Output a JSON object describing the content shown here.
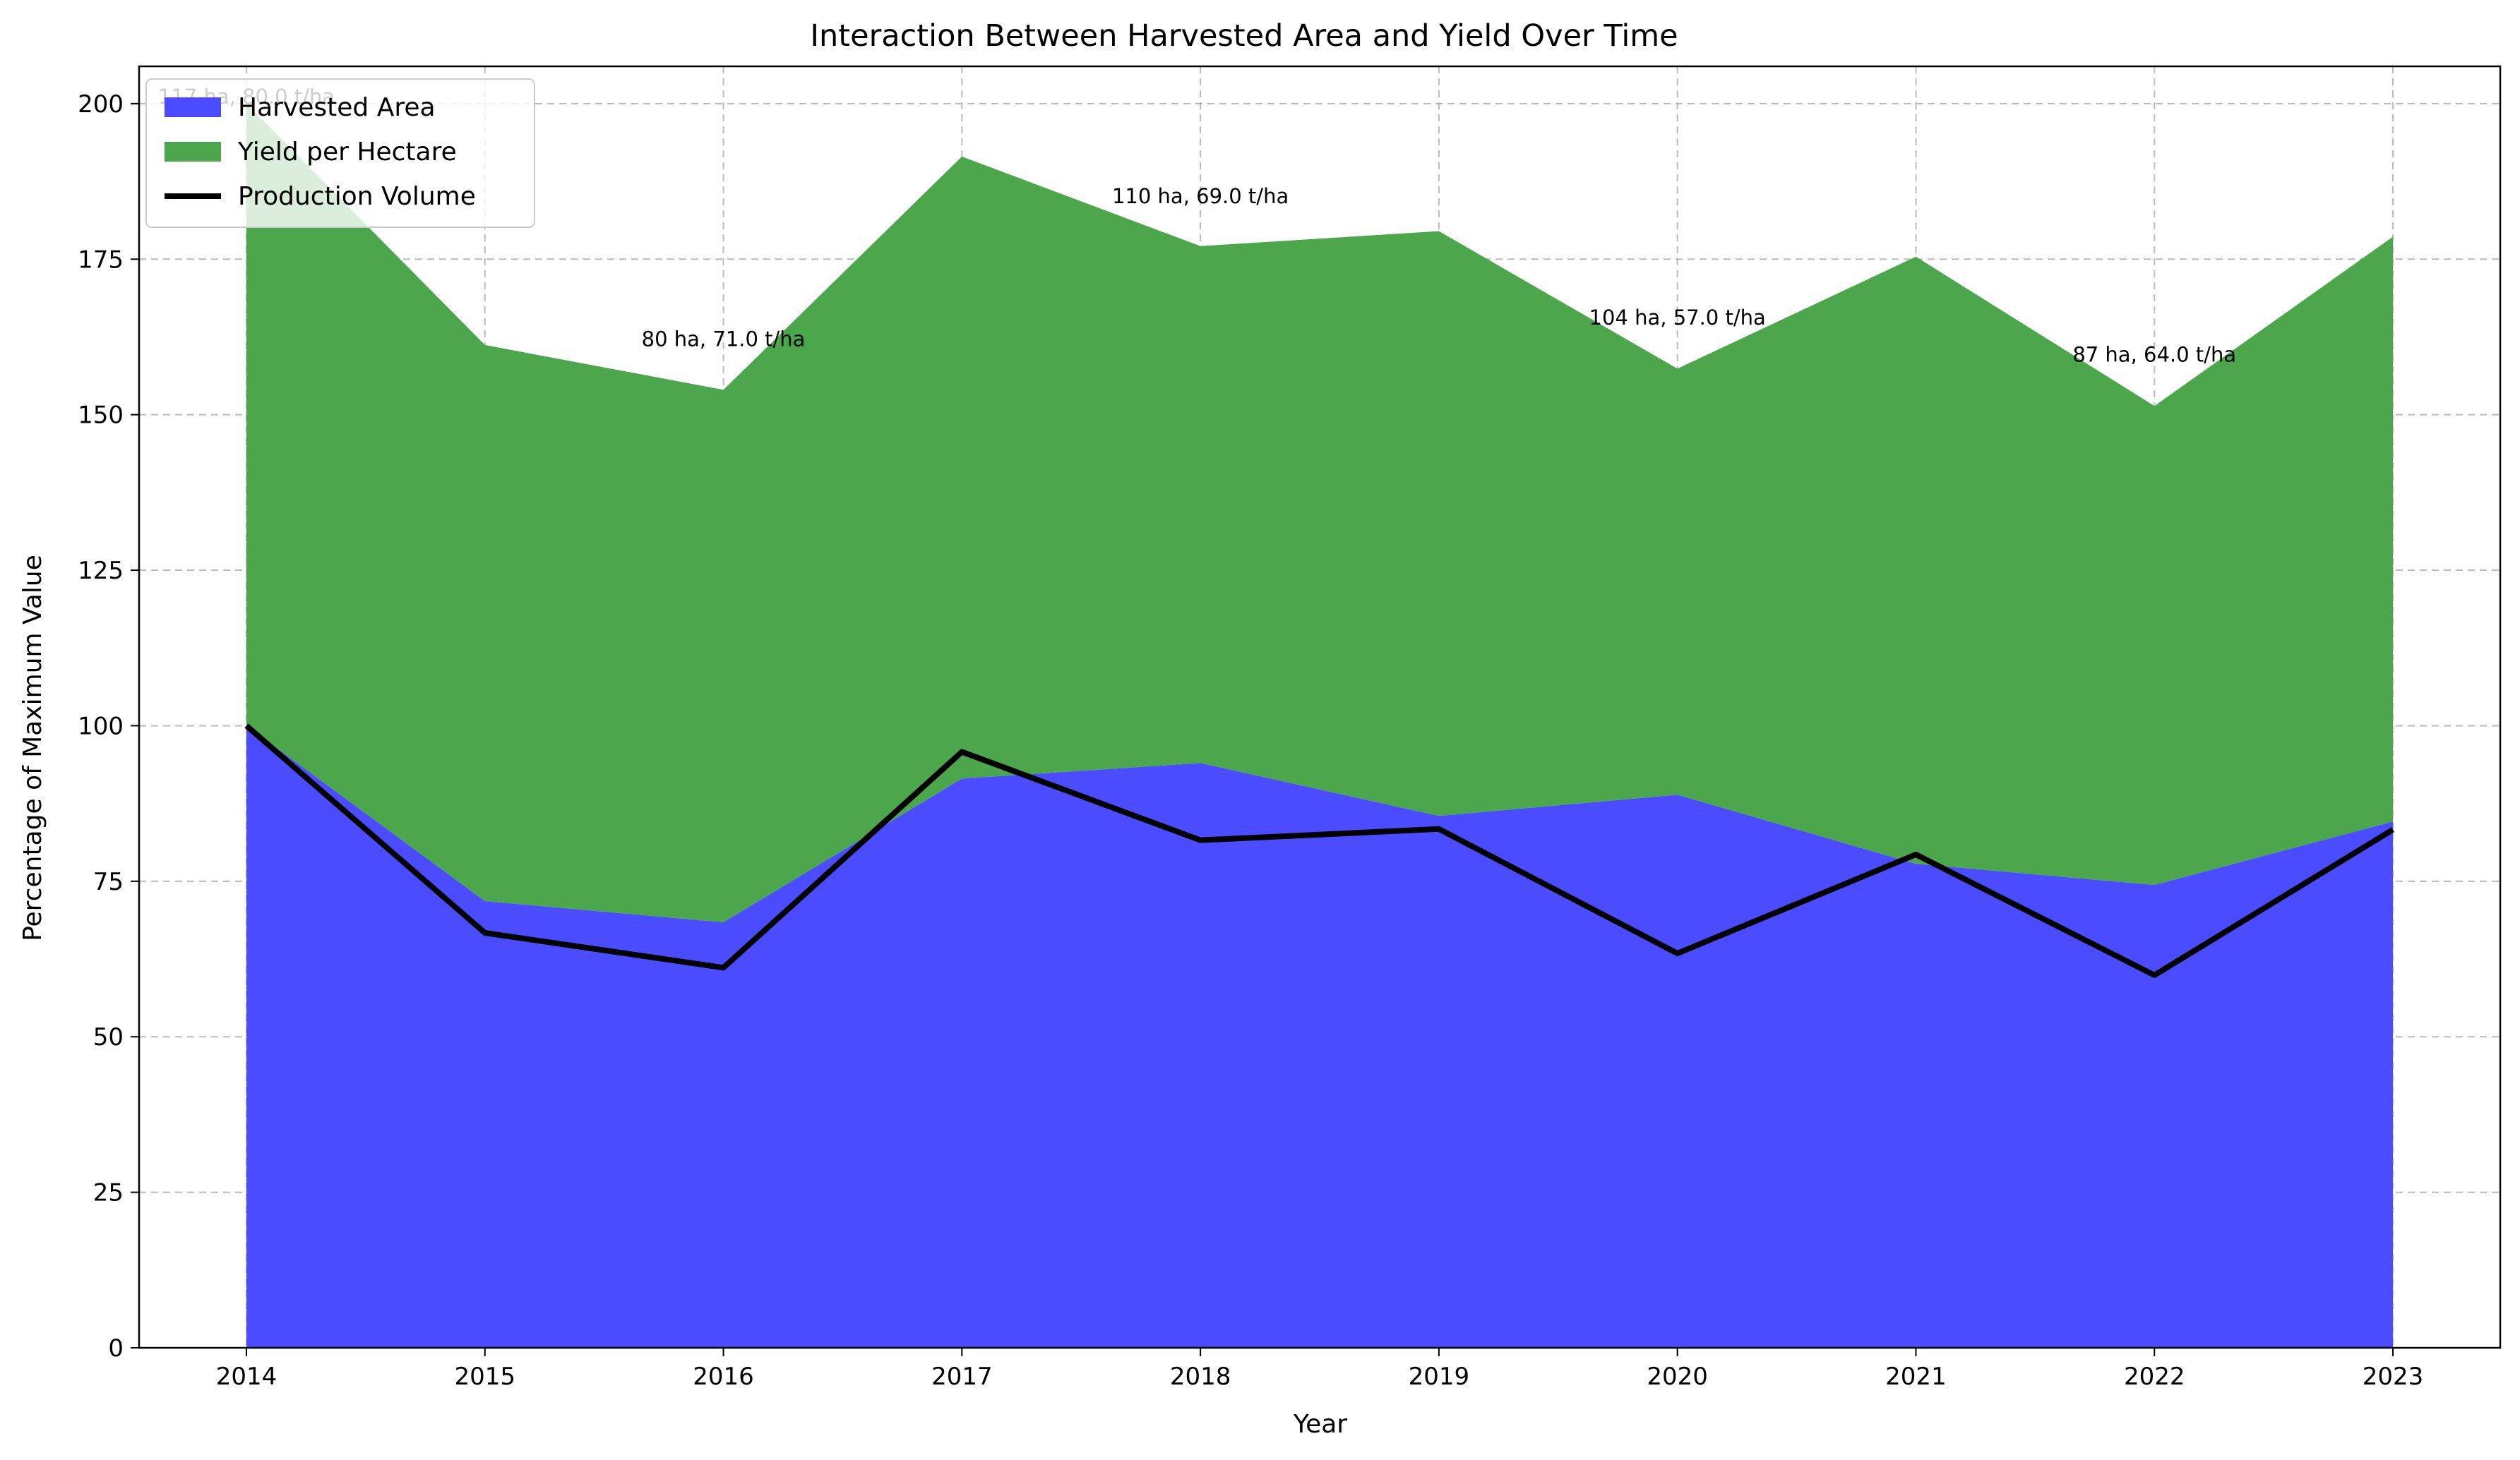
{
  "chart_data": {
    "type": "area",
    "title": "Interaction Between Harvested Area and Yield Over Time",
    "xlabel": "Year",
    "ylabel": "Percentage of Maximum Value",
    "x": [
      2014,
      2015,
      2016,
      2017,
      2018,
      2019,
      2020,
      2021,
      2022,
      2023
    ],
    "x_tick_labels": [
      "2014",
      "2015",
      "2016",
      "2017",
      "2018",
      "2019",
      "2020",
      "2021",
      "2022",
      "2023"
    ],
    "y_ticks": [
      0,
      25,
      50,
      75,
      100,
      125,
      150,
      175,
      200
    ],
    "y_tick_labels": [
      "0",
      "25",
      "50",
      "75",
      "100",
      "125",
      "150",
      "175",
      "200"
    ],
    "xlim": [
      2013.55,
      2023.45
    ],
    "ylim": [
      0,
      206
    ],
    "grid": true,
    "legend_position": "top-left",
    "stacked": true,
    "series": [
      {
        "name": "Harvested Area",
        "type": "area",
        "color": "#4b4bff",
        "values": [
          100,
          71.8,
          68.4,
          91.5,
          94.0,
          85.5,
          88.9,
          77.8,
          74.4,
          84.6
        ]
      },
      {
        "name": "Yield per Hectare",
        "type": "area",
        "color": "#4ca64c",
        "values": [
          100,
          89.4,
          85.6,
          100,
          83.1,
          94.0,
          68.5,
          97.6,
          77.0,
          94.0
        ]
      },
      {
        "name": "Production Volume",
        "type": "line",
        "color": "#000000",
        "values": [
          100,
          66.7,
          61.1,
          95.8,
          81.6,
          83.4,
          63.4,
          79.3,
          59.9,
          83.3
        ]
      }
    ],
    "annotations": [
      {
        "x": 2014,
        "y": 200,
        "text": "117 ha, 80.0 t/ha"
      },
      {
        "x": 2016,
        "y": 161,
        "text": "80 ha, 71.0 t/ha"
      },
      {
        "x": 2018,
        "y": 184,
        "text": "110 ha, 69.0 t/ha"
      },
      {
        "x": 2020,
        "y": 164.5,
        "text": "104 ha, 57.0 t/ha"
      },
      {
        "x": 2022,
        "y": 158.5,
        "text": "87 ha, 64.0 t/ha"
      }
    ]
  }
}
